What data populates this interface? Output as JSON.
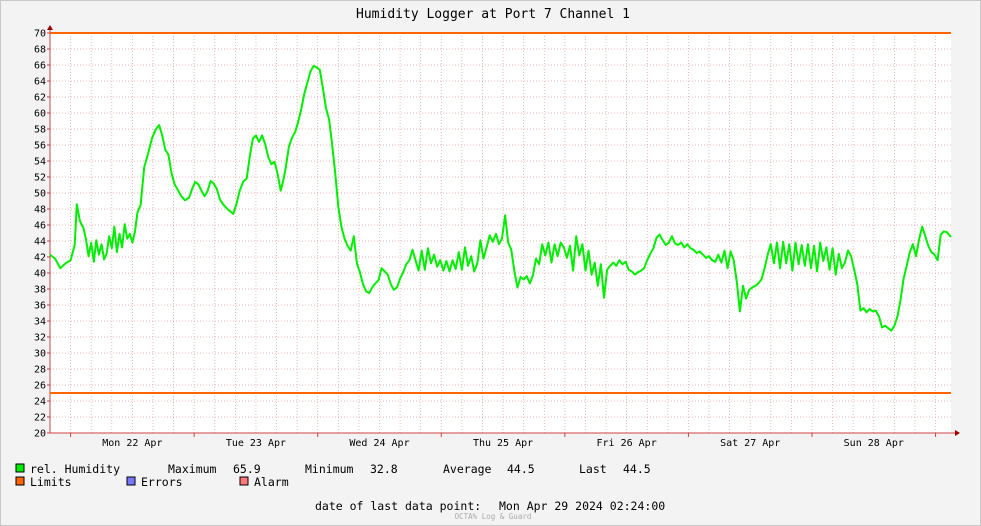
{
  "chart_data": {
    "type": "line",
    "title": "Humidity Logger at Port 7 Channel 1",
    "ylim": [
      20,
      70
    ],
    "yticks": [
      20,
      22,
      24,
      26,
      28,
      30,
      32,
      34,
      36,
      38,
      40,
      42,
      44,
      46,
      48,
      50,
      52,
      54,
      56,
      58,
      60,
      62,
      64,
      66,
      68,
      70
    ],
    "xlim_hours": [
      0,
      175
    ],
    "xtick_labels": [
      "Mon 22 Apr",
      "Tue 23 Apr",
      "Wed 24 Apr",
      "Thu 25 Apr",
      "Fri 26 Apr",
      "Sat 27 Apr",
      "Sun 28 Apr"
    ],
    "limits": {
      "upper": 70,
      "lower": 25,
      "color": "#ff6600"
    },
    "series": [
      {
        "name": "rel. Humidity",
        "color": "#00ee00",
        "points": [
          [
            0,
            42.3
          ],
          [
            1,
            41.8
          ],
          [
            2,
            40.6
          ],
          [
            3,
            41.2
          ],
          [
            4,
            41.6
          ],
          [
            4.8,
            43.5
          ],
          [
            5.2,
            48.6
          ],
          [
            5.8,
            46.5
          ],
          [
            6.5,
            45.6
          ],
          [
            7,
            44.2
          ],
          [
            7.5,
            42.1
          ],
          [
            8,
            43.8
          ],
          [
            8.5,
            41.4
          ],
          [
            9,
            44.1
          ],
          [
            9.5,
            42.3
          ],
          [
            10,
            43.6
          ],
          [
            10.5,
            41.7
          ],
          [
            11,
            42.4
          ],
          [
            11.5,
            44.6
          ],
          [
            12,
            43.1
          ],
          [
            12.5,
            45.8
          ],
          [
            13,
            42.6
          ],
          [
            13.5,
            44.9
          ],
          [
            14,
            43.2
          ],
          [
            14.5,
            46.1
          ],
          [
            15,
            44.3
          ],
          [
            15.5,
            44.9
          ],
          [
            16,
            43.8
          ],
          [
            16.5,
            45.2
          ],
          [
            17,
            47.6
          ],
          [
            17.6,
            48.5
          ],
          [
            18.3,
            53.2
          ],
          [
            19,
            54.8
          ],
          [
            19.8,
            56.8
          ],
          [
            20.5,
            57.9
          ],
          [
            21.2,
            58.5
          ],
          [
            21.8,
            57.2
          ],
          [
            22.4,
            55.4
          ],
          [
            23,
            54.8
          ],
          [
            23.6,
            52.5
          ],
          [
            24.2,
            51.1
          ],
          [
            24.8,
            50.4
          ],
          [
            25.5,
            49.6
          ],
          [
            26.2,
            49.1
          ],
          [
            27,
            49.4
          ],
          [
            27.6,
            50.5
          ],
          [
            28.2,
            51.4
          ],
          [
            28.8,
            51.1
          ],
          [
            29.4,
            50.3
          ],
          [
            30,
            49.6
          ],
          [
            30.6,
            50.2
          ],
          [
            31.2,
            51.5
          ],
          [
            31.8,
            51.2
          ],
          [
            32.4,
            50.5
          ],
          [
            33,
            49.2
          ],
          [
            33.6,
            48.6
          ],
          [
            34.3,
            48.1
          ],
          [
            35,
            47.7
          ],
          [
            35.6,
            47.4
          ],
          [
            36.2,
            48.6
          ],
          [
            36.8,
            50.2
          ],
          [
            37.5,
            51.4
          ],
          [
            38.2,
            51.8
          ],
          [
            38.8,
            54.6
          ],
          [
            39.4,
            56.8
          ],
          [
            40,
            57.2
          ],
          [
            40.6,
            56.4
          ],
          [
            41.2,
            57.2
          ],
          [
            41.8,
            56.1
          ],
          [
            42.4,
            54.5
          ],
          [
            43,
            53.6
          ],
          [
            43.6,
            53.9
          ],
          [
            44.2,
            52.4
          ],
          [
            44.8,
            50.3
          ],
          [
            45.3,
            51.5
          ],
          [
            45.8,
            53.2
          ],
          [
            46.4,
            55.8
          ],
          [
            47,
            56.9
          ],
          [
            47.6,
            57.6
          ],
          [
            48.2,
            58.9
          ],
          [
            48.8,
            60.5
          ],
          [
            49.4,
            62.4
          ],
          [
            50,
            63.8
          ],
          [
            50.6,
            65.2
          ],
          [
            51.2,
            65.9
          ],
          [
            51.8,
            65.7
          ],
          [
            52.4,
            65.4
          ],
          [
            53,
            63.1
          ],
          [
            53.6,
            60.6
          ],
          [
            54.2,
            59.2
          ],
          [
            54.8,
            56.1
          ],
          [
            55.4,
            52.5
          ],
          [
            56,
            48.3
          ],
          [
            56.6,
            45.8
          ],
          [
            57.2,
            44.3
          ],
          [
            57.8,
            43.4
          ],
          [
            58.4,
            42.8
          ],
          [
            59,
            44.6
          ],
          [
            59.6,
            41.2
          ],
          [
            60.2,
            40.1
          ],
          [
            60.8,
            38.6
          ],
          [
            61.4,
            37.7
          ],
          [
            62,
            37.5
          ],
          [
            62.6,
            38.2
          ],
          [
            63.2,
            38.7
          ],
          [
            63.8,
            39.1
          ],
          [
            64.4,
            40.6
          ],
          [
            65,
            40.2
          ],
          [
            65.6,
            39.8
          ],
          [
            66.2,
            38.6
          ],
          [
            66.8,
            37.9
          ],
          [
            67.4,
            38.2
          ],
          [
            68,
            39.3
          ],
          [
            68.6,
            40.1
          ],
          [
            69.2,
            41.1
          ],
          [
            69.8,
            41.6
          ],
          [
            70.4,
            42.9
          ],
          [
            71,
            41.6
          ],
          [
            71.6,
            40.3
          ],
          [
            72.2,
            42.8
          ],
          [
            72.8,
            40.4
          ],
          [
            73.4,
            43.1
          ],
          [
            74,
            41.2
          ],
          [
            74.6,
            42.3
          ],
          [
            75.2,
            40.8
          ],
          [
            75.8,
            41.6
          ],
          [
            76.4,
            40.3
          ],
          [
            77,
            41.5
          ],
          [
            77.6,
            40.2
          ],
          [
            78.2,
            41.6
          ],
          [
            78.8,
            40.5
          ],
          [
            79.4,
            42.6
          ],
          [
            80,
            40.4
          ],
          [
            80.6,
            43.2
          ],
          [
            81.2,
            40.9
          ],
          [
            81.8,
            42.1
          ],
          [
            82.4,
            40.2
          ],
          [
            83,
            41.2
          ],
          [
            83.6,
            44.1
          ],
          [
            84.2,
            41.8
          ],
          [
            84.8,
            43.2
          ],
          [
            85.4,
            44.7
          ],
          [
            86,
            43.9
          ],
          [
            86.6,
            44.9
          ],
          [
            87.2,
            43.6
          ],
          [
            87.8,
            44.3
          ],
          [
            88.4,
            47.2
          ],
          [
            89,
            43.8
          ],
          [
            89.6,
            42.9
          ],
          [
            90.2,
            40.2
          ],
          [
            90.8,
            38.2
          ],
          [
            91.4,
            39.5
          ],
          [
            92,
            39.2
          ],
          [
            92.6,
            39.6
          ],
          [
            93.2,
            38.7
          ],
          [
            93.8,
            39.7
          ],
          [
            94.4,
            41.8
          ],
          [
            95,
            41.1
          ],
          [
            95.6,
            43.6
          ],
          [
            96.2,
            42.2
          ],
          [
            96.8,
            43.8
          ],
          [
            97.4,
            41.3
          ],
          [
            98,
            43.6
          ],
          [
            98.6,
            42.1
          ],
          [
            99.2,
            43.8
          ],
          [
            99.8,
            43.2
          ],
          [
            100.4,
            41.9
          ],
          [
            101,
            43.4
          ],
          [
            101.6,
            40.3
          ],
          [
            102.2,
            44.6
          ],
          [
            102.8,
            42.2
          ],
          [
            103.4,
            43.6
          ],
          [
            104,
            40.3
          ],
          [
            104.6,
            42.8
          ],
          [
            105.2,
            39.8
          ],
          [
            105.8,
            41.3
          ],
          [
            106.4,
            38.4
          ],
          [
            107,
            41.1
          ],
          [
            107.6,
            36.9
          ],
          [
            108.2,
            40.4
          ],
          [
            108.8,
            40.9
          ],
          [
            109.4,
            41.3
          ],
          [
            110,
            40.9
          ],
          [
            110.6,
            41.6
          ],
          [
            111.2,
            41.1
          ],
          [
            111.8,
            41.4
          ],
          [
            112.4,
            40.4
          ],
          [
            113,
            40.2
          ],
          [
            113.6,
            39.8
          ],
          [
            114.2,
            40.1
          ],
          [
            114.8,
            40.3
          ],
          [
            115.4,
            40.6
          ],
          [
            116,
            41.6
          ],
          [
            116.6,
            42.4
          ],
          [
            117.2,
            43.1
          ],
          [
            117.8,
            44.4
          ],
          [
            118.4,
            44.8
          ],
          [
            119,
            44.1
          ],
          [
            119.6,
            43.5
          ],
          [
            120.2,
            43.8
          ],
          [
            120.8,
            44.6
          ],
          [
            121.4,
            43.7
          ],
          [
            122,
            43.5
          ],
          [
            122.6,
            43.8
          ],
          [
            123.2,
            43.2
          ],
          [
            123.8,
            43.6
          ],
          [
            124.4,
            43.1
          ],
          [
            125,
            42.9
          ],
          [
            125.6,
            42.5
          ],
          [
            126.2,
            42.7
          ],
          [
            126.8,
            42.3
          ],
          [
            127.4,
            41.9
          ],
          [
            128,
            42.1
          ],
          [
            128.6,
            41.6
          ],
          [
            129.2,
            41.4
          ],
          [
            129.8,
            42.3
          ],
          [
            130.4,
            41.3
          ],
          [
            131,
            42.8
          ],
          [
            131.6,
            40.6
          ],
          [
            132.2,
            42.7
          ],
          [
            132.8,
            41.6
          ],
          [
            133.4,
            38.9
          ],
          [
            134,
            35.2
          ],
          [
            134.6,
            38.4
          ],
          [
            135.2,
            36.8
          ],
          [
            135.8,
            37.9
          ],
          [
            136.4,
            38.2
          ],
          [
            137,
            38.4
          ],
          [
            137.6,
            38.7
          ],
          [
            138.2,
            39.2
          ],
          [
            138.8,
            40.6
          ],
          [
            139.4,
            42.3
          ],
          [
            140,
            43.6
          ],
          [
            140.6,
            41.2
          ],
          [
            141.2,
            43.8
          ],
          [
            141.8,
            40.6
          ],
          [
            142.4,
            43.9
          ],
          [
            143,
            41.2
          ],
          [
            143.6,
            43.6
          ],
          [
            144.2,
            40.3
          ],
          [
            144.8,
            43.8
          ],
          [
            145.4,
            41.1
          ],
          [
            146,
            43.5
          ],
          [
            146.6,
            40.9
          ],
          [
            147.2,
            43.6
          ],
          [
            147.8,
            40.6
          ],
          [
            148.4,
            43.4
          ],
          [
            149,
            40.2
          ],
          [
            149.6,
            43.8
          ],
          [
            150.2,
            41.5
          ],
          [
            150.8,
            43.2
          ],
          [
            151.4,
            40.4
          ],
          [
            152,
            43.1
          ],
          [
            152.6,
            39.8
          ],
          [
            153.2,
            42.4
          ],
          [
            153.8,
            40.6
          ],
          [
            154.4,
            41.3
          ],
          [
            155,
            42.8
          ],
          [
            155.6,
            42.1
          ],
          [
            156.2,
            40.4
          ],
          [
            156.8,
            38.6
          ],
          [
            157.4,
            35.3
          ],
          [
            158,
            35.6
          ],
          [
            158.6,
            35.1
          ],
          [
            159.2,
            35.5
          ],
          [
            159.8,
            35.2
          ],
          [
            160.4,
            35.3
          ],
          [
            161,
            34.6
          ],
          [
            161.6,
            33.2
          ],
          [
            162.2,
            33.4
          ],
          [
            162.8,
            33.1
          ],
          [
            163.4,
            32.8
          ],
          [
            164,
            33.4
          ],
          [
            164.6,
            34.6
          ],
          [
            165.2,
            36.6
          ],
          [
            165.8,
            39.3
          ],
          [
            166.4,
            40.9
          ],
          [
            167,
            42.6
          ],
          [
            167.6,
            43.6
          ],
          [
            168.2,
            42.1
          ],
          [
            168.8,
            44.2
          ],
          [
            169.4,
            45.8
          ],
          [
            170,
            44.6
          ],
          [
            170.6,
            43.4
          ],
          [
            171.2,
            42.6
          ],
          [
            171.8,
            42.3
          ],
          [
            172.4,
            41.6
          ],
          [
            173,
            44.8
          ],
          [
            173.6,
            45.2
          ],
          [
            174.2,
            45.1
          ],
          [
            175,
            44.5
          ]
        ]
      }
    ],
    "legend": {
      "series_label": "rel. Humidity",
      "limits_label": "Limits",
      "errors_label": "Errors",
      "alarm_label": "Alarm",
      "limits_color": "#ff6600",
      "errors_color": "#7777ff",
      "alarm_color": "#ff7777"
    },
    "stats": {
      "max_label": "Maximum",
      "max_value": "65.9",
      "min_label": "Minimum",
      "min_value": "32.8",
      "avg_label": "Average",
      "avg_value": "44.5",
      "last_label": "Last",
      "last_value": "44.5"
    },
    "footer": {
      "last_point_label": "date of last data point:",
      "last_point_value": "Mon Apr 29 2024 02:24:00",
      "watermark": "OCTA% Log & Guard"
    }
  }
}
